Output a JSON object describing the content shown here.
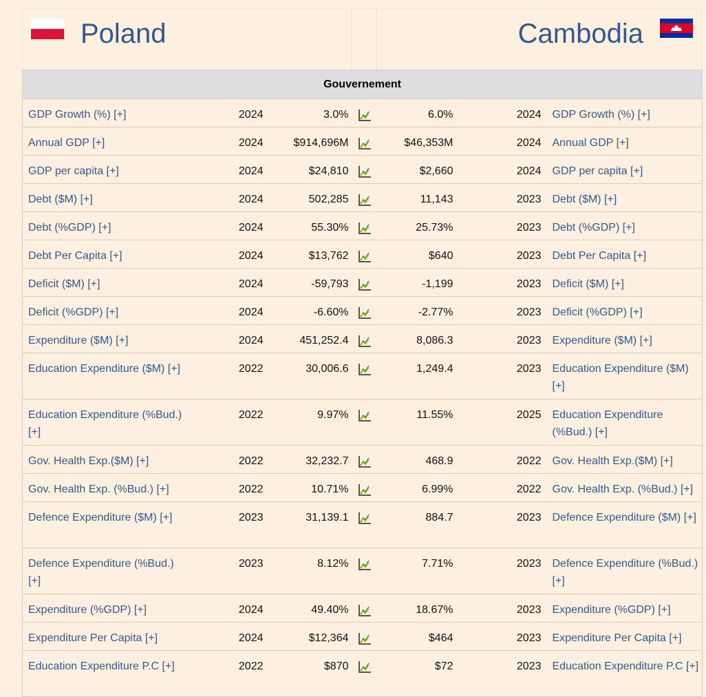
{
  "left_country": {
    "name": "Poland"
  },
  "right_country": {
    "name": "Cambodia"
  },
  "section_title": "Gouvernement",
  "rows": [
    {
      "label": "GDP Growth (%) [+]",
      "ly": "2024",
      "lv": "3.0%",
      "rv": "6.0%",
      "ry": "2024",
      "rlabel": "GDP Growth (%) [+]"
    },
    {
      "label": "Annual GDP [+]",
      "ly": "2024",
      "lv": "$914,696M",
      "rv": "$46,353M",
      "ry": "2024",
      "rlabel": "Annual GDP [+]"
    },
    {
      "label": "GDP per capita [+]",
      "ly": "2024",
      "lv": "$24,810",
      "rv": "$2,660",
      "ry": "2024",
      "rlabel": "GDP per capita [+]"
    },
    {
      "label": "Debt ($M) [+]",
      "ly": "2024",
      "lv": "502,285",
      "rv": "11,143",
      "ry": "2023",
      "rlabel": "Debt ($M) [+]"
    },
    {
      "label": "Debt (%GDP) [+]",
      "ly": "2024",
      "lv": "55.30%",
      "rv": "25.73%",
      "ry": "2023",
      "rlabel": "Debt (%GDP) [+]"
    },
    {
      "label": "Debt Per Capita [+]",
      "ly": "2024",
      "lv": "$13,762",
      "rv": "$640",
      "ry": "2023",
      "rlabel": "Debt Per Capita [+]"
    },
    {
      "label": "Deficit ($M) [+]",
      "ly": "2024",
      "lv": "-59,793",
      "rv": "-1,199",
      "ry": "2023",
      "rlabel": "Deficit ($M) [+]"
    },
    {
      "label": "Deficit (%GDP) [+]",
      "ly": "2024",
      "lv": "-6.60%",
      "rv": "-2.77%",
      "ry": "2023",
      "rlabel": "Deficit (%GDP) [+]"
    },
    {
      "label": "Expenditure ($M) [+]",
      "ly": "2024",
      "lv": "451,252.4",
      "rv": "8,086.3",
      "ry": "2023",
      "rlabel": "Expenditure ($M) [+]"
    },
    {
      "label": "Education Expenditure ($M) [+]",
      "ly": "2022",
      "lv": "30,006.6",
      "rv": "1,249.4",
      "ry": "2023",
      "rlabel": "Education Expenditure ($M) [+]"
    },
    {
      "label": "Education Expenditure (%Bud.) [+]",
      "ly": "2022",
      "lv": "9.97%",
      "rv": "11.55%",
      "ry": "2025",
      "rlabel": "Education Expenditure (%Bud.) [+]"
    },
    {
      "label": "Gov. Health Exp.($M) [+]",
      "ly": "2022",
      "lv": "32,232.7",
      "rv": "468.9",
      "ry": "2022",
      "rlabel": "Gov. Health Exp.($M) [+]"
    },
    {
      "label": "Gov. Health Exp. (%Bud.) [+]",
      "ly": "2022",
      "lv": "10.71%",
      "rv": "6.99%",
      "ry": "2022",
      "rlabel": "Gov. Health Exp. (%Bud.) [+]"
    },
    {
      "label": "Defence Expenditure ($M) [+]",
      "ly": "2023",
      "lv": "31,139.1",
      "rv": "884.7",
      "ry": "2023",
      "rlabel": "Defence Expenditure ($M) [+]"
    },
    {
      "label": "Defence Expenditure (%Bud.) [+]",
      "ly": "2023",
      "lv": "8.12%",
      "rv": "7.71%",
      "ry": "2023",
      "rlabel": "Defence Expenditure (%Bud.) [+]"
    },
    {
      "label": "Expenditure (%GDP) [+]",
      "ly": "2024",
      "lv": "49.40%",
      "rv": "18.67%",
      "ry": "2023",
      "rlabel": "Expenditure (%GDP) [+]"
    },
    {
      "label": "Expenditure Per Capita [+]",
      "ly": "2024",
      "lv": "$12,364",
      "rv": "$464",
      "ry": "2023",
      "rlabel": "Expenditure Per Capita [+]"
    },
    {
      "label": "Education Expenditure P.C [+]",
      "ly": "2022",
      "lv": "$870",
      "rv": "$72",
      "ry": "2023",
      "rlabel": "Education Expenditure P.C [+]"
    }
  ],
  "icons": {
    "chart": "line-chart-icon"
  },
  "colors": {
    "background": "#fdf0e0",
    "link": "#33598c",
    "section_bg": "#dedede"
  }
}
